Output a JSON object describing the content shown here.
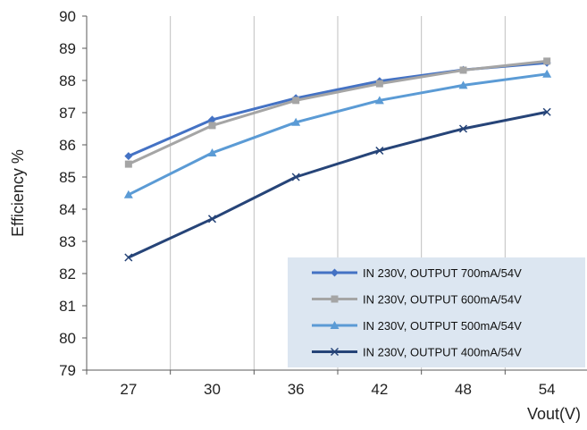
{
  "chart_data": {
    "type": "line",
    "xlabel": "Vout(V)",
    "ylabel": "Efficiency %",
    "categories": [
      "27",
      "30",
      "36",
      "42",
      "48",
      "54"
    ],
    "ylim": [
      79,
      90
    ],
    "yticks": [
      79,
      80,
      81,
      82,
      83,
      84,
      85,
      86,
      87,
      88,
      89,
      90
    ],
    "grid": "vertical",
    "legend_position": "bottom-right",
    "series": [
      {
        "name": "IN 230V, OUTPUT 700mA/54V",
        "values": [
          85.65,
          86.78,
          87.45,
          87.98,
          88.33,
          88.55
        ],
        "color": "#4472c4",
        "marker": "diamond"
      },
      {
        "name": "IN 230V, OUTPUT 600mA/54V",
        "values": [
          85.4,
          86.6,
          87.38,
          87.9,
          88.32,
          88.6
        ],
        "color": "#a5a5a5",
        "marker": "square"
      },
      {
        "name": "IN 230V, OUTPUT 500mA/54V",
        "values": [
          84.45,
          85.75,
          86.7,
          87.38,
          87.85,
          88.2
        ],
        "color": "#5b9bd5",
        "marker": "triangle"
      },
      {
        "name": "IN 230V, OUTPUT 400mA/54V",
        "values": [
          82.5,
          83.7,
          85.0,
          85.82,
          86.5,
          87.02
        ],
        "color": "#264478",
        "marker": "x"
      }
    ]
  }
}
